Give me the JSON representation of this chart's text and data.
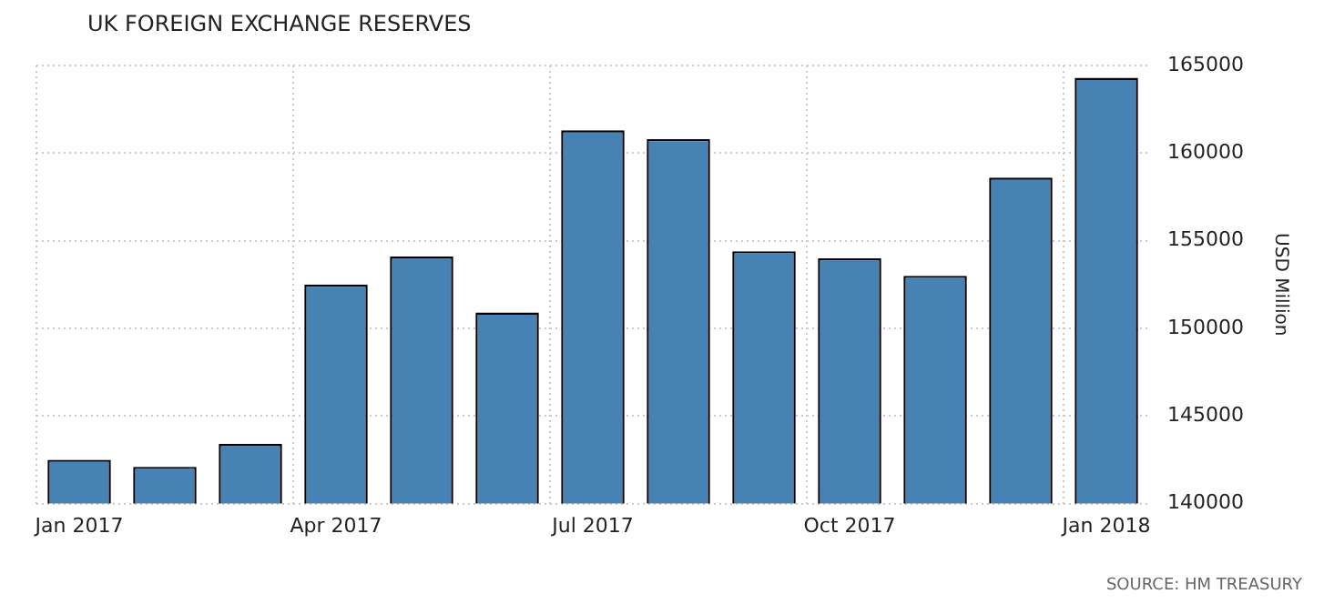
{
  "chart_data": {
    "type": "bar",
    "title": "UK FOREIGN EXCHANGE RESERVES",
    "ylabel": "USD Million",
    "categories": [
      "Jan 2017",
      null,
      null,
      "Apr 2017",
      null,
      null,
      "Jul 2017",
      null,
      null,
      "Oct 2017",
      null,
      null,
      "Jan 2018"
    ],
    "values": [
      142500,
      142100,
      143400,
      152500,
      154100,
      150900,
      161300,
      160800,
      154400,
      154000,
      153000,
      158600,
      164300
    ],
    "color": "#4682b4",
    "ylim": [
      140000,
      165000
    ],
    "yticks": [
      140000,
      145000,
      150000,
      155000,
      160000,
      165000
    ],
    "grid": true,
    "legend": false,
    "annotations": [
      "SOURCE: HM TREASURY"
    ]
  }
}
